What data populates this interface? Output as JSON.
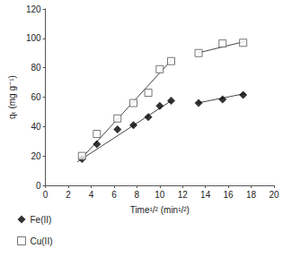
{
  "chart_data": {
    "type": "scatter",
    "x_label": "Time¹/² (min¹/²)",
    "y_label": "qₜ (mg g⁻¹)",
    "xlim": [
      0,
      20
    ],
    "xticks": [
      0,
      2,
      4,
      6,
      8,
      10,
      12,
      14,
      16,
      18,
      20
    ],
    "ylim": [
      0,
      120
    ],
    "yticks": [
      0,
      20,
      40,
      60,
      80,
      100,
      120
    ],
    "grid": false,
    "legend": "bottom-left",
    "series": [
      {
        "name": "Fe(II)",
        "color": "#000000",
        "marker": "diamond",
        "x": [
          3.2,
          4.5,
          6.3,
          7.7,
          9.0,
          10.0,
          11.0,
          13.4,
          15.5,
          17.3
        ],
        "values": [
          18,
          28,
          38,
          41,
          46.5,
          54,
          57.5,
          56,
          58.5,
          61.5
        ],
        "fit_lines": [
          [
            [
              2.8,
              16
            ],
            [
              11.0,
              57.5
            ]
          ],
          [
            [
              13.3,
              56
            ],
            [
              17.5,
              62.5
            ]
          ]
        ]
      },
      {
        "name": "Cu(II)",
        "color": "#555555",
        "marker": "open_square",
        "x": [
          3.2,
          4.5,
          6.3,
          7.7,
          9.0,
          10.0,
          11.0,
          13.4,
          15.5,
          17.3
        ],
        "values": [
          20,
          35,
          45.5,
          56,
          63,
          79,
          84.5,
          90,
          96.5,
          97
        ],
        "fit_lines": [
          [
            [
              3.0,
              17
            ],
            [
              11.0,
              85
            ]
          ],
          [
            [
              13.3,
              90
            ],
            [
              17.5,
              98
            ]
          ]
        ]
      }
    ]
  }
}
